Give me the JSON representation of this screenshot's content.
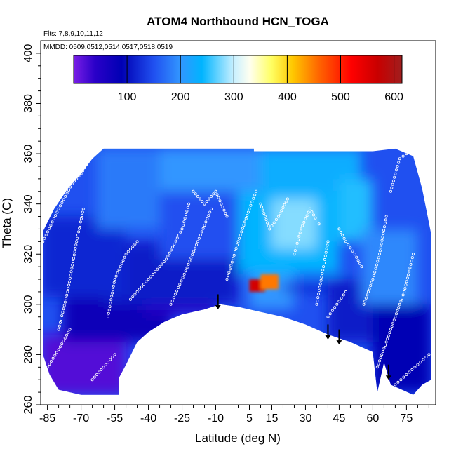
{
  "chart_data": {
    "type": "heatmap",
    "title": "ATOM4 Northbound HCN_TOGA",
    "subtitle_flights": "Flts: 7,8,9,10,11,12",
    "subtitle_dates": "MMDD: 0509,0512,0514,0517,0518,0519",
    "xlabel": "Latitude (deg N)",
    "ylabel": "Theta (C)",
    "xlim": [
      -88,
      88
    ],
    "ylim": [
      260,
      405
    ],
    "x_ticks": [
      -85,
      -70,
      -55,
      -40,
      -25,
      -10,
      5,
      15,
      30,
      45,
      60,
      75
    ],
    "x_tick_labels": [
      "-85",
      "-70",
      "-55",
      "-40",
      "-25",
      "-10",
      "5",
      "15",
      "30",
      "45",
      "60",
      "75"
    ],
    "y_ticks": [
      260,
      280,
      300,
      320,
      340,
      360,
      380,
      400
    ],
    "y_tick_labels": [
      "260",
      "280",
      "300",
      "320",
      "340",
      "360",
      "380",
      "400"
    ],
    "colorbar": {
      "range": [
        0,
        615
      ],
      "ticks": [
        100,
        200,
        300,
        400,
        500,
        600
      ],
      "tick_labels": [
        "100",
        "200",
        "300",
        "400",
        "500",
        "600"
      ],
      "stops": [
        {
          "v": 0,
          "c": "#7a1ee6"
        },
        {
          "v": 40,
          "c": "#2a00c8"
        },
        {
          "v": 90,
          "c": "#0000b4"
        },
        {
          "v": 150,
          "c": "#2050f0"
        },
        {
          "v": 200,
          "c": "#3296ff"
        },
        {
          "v": 240,
          "c": "#00b4ff"
        },
        {
          "v": 300,
          "c": "#c8f0ff"
        },
        {
          "v": 330,
          "c": "#fffff0"
        },
        {
          "v": 370,
          "c": "#ffff64"
        },
        {
          "v": 410,
          "c": "#ffc800"
        },
        {
          "v": 460,
          "c": "#ff6400"
        },
        {
          "v": 520,
          "c": "#ff0000"
        },
        {
          "v": 570,
          "c": "#c80000"
        },
        {
          "v": 615,
          "c": "#a01e1e"
        }
      ]
    },
    "data_lower_boundary": [
      [
        -87,
        280
      ],
      [
        -84,
        272
      ],
      [
        -80,
        266
      ],
      [
        -70,
        264
      ],
      [
        -60,
        264
      ],
      [
        -53,
        264
      ],
      [
        -53,
        271
      ],
      [
        -50,
        276
      ],
      [
        -45,
        285
      ],
      [
        -40,
        289
      ],
      [
        -33,
        293
      ],
      [
        -25,
        296
      ],
      [
        -15,
        298
      ],
      [
        -8,
        300
      ],
      [
        0,
        299
      ],
      [
        10,
        297
      ],
      [
        20,
        295
      ],
      [
        30,
        292
      ],
      [
        40,
        288
      ],
      [
        50,
        285
      ],
      [
        55,
        283
      ],
      [
        60,
        281
      ],
      [
        62,
        265
      ],
      [
        65,
        277
      ],
      [
        68,
        268
      ],
      [
        73,
        266
      ],
      [
        78,
        264
      ],
      [
        82,
        268
      ],
      [
        86,
        270
      ]
    ],
    "data_upper_boundary": [
      [
        -87,
        329
      ],
      [
        -82,
        338
      ],
      [
        -76,
        346
      ],
      [
        -70,
        352
      ],
      [
        -65,
        358
      ],
      [
        -60,
        362
      ],
      [
        7,
        362
      ],
      [
        7,
        361
      ],
      [
        40,
        361
      ],
      [
        60,
        361
      ],
      [
        70,
        362
      ],
      [
        78,
        359
      ],
      [
        82,
        346
      ],
      [
        86,
        328
      ]
    ],
    "field_regions": [
      {
        "x": [
          -88,
          -50
        ],
        "y": [
          264,
          288
        ],
        "value": 20
      },
      {
        "x": [
          -78,
          -30
        ],
        "y": [
          285,
          305
        ],
        "value": 80
      },
      {
        "x": [
          -42,
          -10
        ],
        "y": [
          296,
          305
        ],
        "value": 45
      },
      {
        "x": [
          -60,
          0
        ],
        "y": [
          300,
          325
        ],
        "value": 110
      },
      {
        "x": [
          -88,
          -50
        ],
        "y": [
          303,
          335
        ],
        "value": 120
      },
      {
        "x": [
          -35,
          5
        ],
        "y": [
          318,
          345
        ],
        "value": 150
      },
      {
        "x": [
          -63,
          -35
        ],
        "y": [
          330,
          362
        ],
        "value": 180
      },
      {
        "x": [
          -35,
          10
        ],
        "y": [
          345,
          362
        ],
        "value": 200
      },
      {
        "x": [
          0,
          45
        ],
        "y": [
          312,
          345
        ],
        "value": 240
      },
      {
        "x": [
          15,
          35
        ],
        "y": [
          322,
          342
        ],
        "value": 280
      },
      {
        "x": [
          10,
          55
        ],
        "y": [
          345,
          362
        ],
        "value": 230
      },
      {
        "x": [
          45,
          60
        ],
        "y": [
          325,
          350
        ],
        "value": 250
      },
      {
        "x": [
          5,
          25
        ],
        "y": [
          298,
          312
        ],
        "value": 200
      },
      {
        "x": [
          40,
          62
        ],
        "y": [
          285,
          310
        ],
        "value": 110
      },
      {
        "x": [
          55,
          80
        ],
        "y": [
          300,
          330
        ],
        "value": 190
      },
      {
        "x": [
          60,
          86
        ],
        "y": [
          265,
          300
        ],
        "value": 90
      },
      {
        "x": [
          5,
          12
        ],
        "y": [
          305,
          310
        ],
        "value": 560
      },
      {
        "x": [
          10,
          18
        ],
        "y": [
          306,
          312
        ],
        "value": 450
      },
      {
        "x": [
          20,
          40
        ],
        "y": [
          305,
          308
        ],
        "value": 120
      }
    ],
    "sample_tracks": [
      [
        [
          -87,
          325
        ],
        [
          -80,
          338
        ],
        [
          -74,
          348
        ],
        [
          -70,
          352
        ],
        [
          -66,
          358
        ],
        [
          -62,
          362
        ]
      ],
      [
        [
          -80,
          290
        ],
        [
          -76,
          305
        ],
        [
          -72,
          325
        ],
        [
          -69,
          338
        ]
      ],
      [
        [
          -58,
          295
        ],
        [
          -55,
          310
        ],
        [
          -50,
          320
        ],
        [
          -45,
          325
        ]
      ],
      [
        [
          -48,
          302
        ],
        [
          -40,
          310
        ],
        [
          -32,
          318
        ],
        [
          -25,
          330
        ],
        [
          -22,
          340
        ]
      ],
      [
        [
          -20,
          345
        ],
        [
          -15,
          340
        ],
        [
          -10,
          345
        ],
        [
          -5,
          335
        ]
      ],
      [
        [
          -30,
          300
        ],
        [
          -24,
          312
        ],
        [
          -18,
          325
        ],
        [
          -12,
          338
        ]
      ],
      [
        [
          -5,
          310
        ],
        [
          0,
          325
        ],
        [
          5,
          338
        ],
        [
          8,
          345
        ]
      ],
      [
        [
          10,
          340
        ],
        [
          14,
          330
        ],
        [
          18,
          335
        ],
        [
          22,
          342
        ]
      ],
      [
        [
          25,
          320
        ],
        [
          28,
          330
        ],
        [
          32,
          338
        ],
        [
          36,
          332
        ]
      ],
      [
        [
          35,
          300
        ],
        [
          38,
          315
        ],
        [
          40,
          325
        ]
      ],
      [
        [
          45,
          330
        ],
        [
          48,
          325
        ],
        [
          52,
          320
        ],
        [
          55,
          315
        ]
      ],
      [
        [
          56,
          300
        ],
        [
          60,
          310
        ],
        [
          63,
          320
        ],
        [
          66,
          335
        ]
      ],
      [
        [
          68,
          345
        ],
        [
          70,
          352
        ],
        [
          72,
          358
        ],
        [
          75,
          360
        ]
      ],
      [
        [
          62,
          275
        ],
        [
          66,
          285
        ],
        [
          70,
          295
        ],
        [
          74,
          305
        ],
        [
          78,
          320
        ]
      ],
      [
        [
          -85,
          275
        ],
        [
          -80,
          282
        ],
        [
          -75,
          290
        ]
      ],
      [
        [
          -65,
          270
        ],
        [
          -60,
          275
        ],
        [
          -55,
          280
        ]
      ],
      [
        [
          40,
          295
        ],
        [
          44,
          300
        ],
        [
          48,
          305
        ]
      ],
      [
        [
          70,
          268
        ],
        [
          75,
          272
        ],
        [
          80,
          276
        ],
        [
          85,
          280
        ]
      ]
    ],
    "arrows": [
      {
        "lat": -9,
        "theta_top": 304,
        "theta_tip": 298
      },
      {
        "lat": 40,
        "theta_top": 292,
        "theta_tip": 286
      },
      {
        "lat": 45,
        "theta_top": 290,
        "theta_tip": 284
      },
      {
        "lat": 67,
        "theta_top": 276,
        "theta_tip": 270
      }
    ]
  }
}
